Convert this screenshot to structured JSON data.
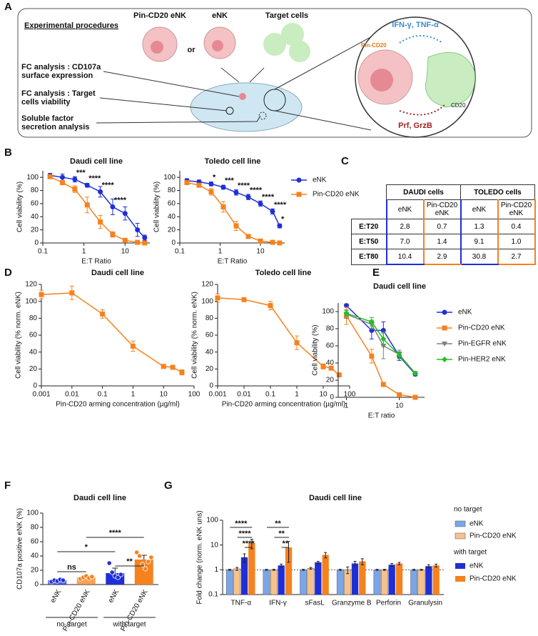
{
  "panel_labels": [
    "A",
    "B",
    "C",
    "D",
    "E",
    "F",
    "G"
  ],
  "diagram": {
    "title": "Experimental procedures",
    "top_labels": [
      "Pin-CD20 eNK",
      "eNK",
      "Target cells"
    ],
    "or": "or",
    "analyses": [
      [
        "FC analysis : CD107a",
        "surface expression"
      ],
      [
        "FC analysis : Target",
        "cells viability"
      ],
      [
        "Soluble factor",
        "secretion analysis"
      ]
    ],
    "zoom_labels": {
      "cytokines": "IFN-γ, TNF-α",
      "pin": "Pin-CD20",
      "cd20": "CD20",
      "granules": "Prf, GrzB"
    }
  },
  "table": {
    "group_headers": [
      "DAUDI cells",
      "TOLEDO cells"
    ],
    "column_headers": [
      "eNK",
      "Pin-CD20 eNK",
      "eNK",
      "Pin-CD20 eNK"
    ],
    "rows": [
      {
        "label": "E:T20",
        "cells": [
          "2.8",
          "0.7",
          "1.3",
          "0.4"
        ]
      },
      {
        "label": "E:T50",
        "cells": [
          "7.0",
          "1.4",
          "9.1",
          "1.0"
        ]
      },
      {
        "label": "E:T80",
        "cells": [
          "10.4",
          "2.9",
          "30.8",
          "2.7"
        ]
      }
    ]
  },
  "chart_data": [
    {
      "type": "line",
      "title": "Daudi cell line",
      "xlabel": "E:T Ratio",
      "ylabel": "Cell viability (%)",
      "x": [
        0.15,
        0.3,
        0.6,
        1.2,
        2.5,
        5,
        10,
        20,
        30
      ],
      "xlog": true,
      "xlim": [
        0.1,
        40
      ],
      "xticks": [
        0.1,
        1,
        10
      ],
      "ylim": [
        0,
        110
      ],
      "yticks": [
        0,
        20,
        40,
        60,
        80,
        100
      ],
      "series": [
        {
          "color": "#1f2fd6",
          "marker": "circle",
          "values": [
            103,
            100,
            97,
            88,
            78,
            55,
            45,
            20,
            8
          ],
          "errors": [
            3,
            5,
            4,
            3,
            8,
            12,
            10,
            10,
            4
          ],
          "significance": [
            null,
            null,
            "***",
            "****",
            "****",
            "****",
            null,
            null,
            null
          ]
        },
        {
          "color": "#f5821f",
          "marker": "square",
          "values": [
            101,
            92,
            82,
            58,
            32,
            13,
            4,
            1,
            0
          ],
          "errors": [
            2,
            3,
            5,
            12,
            10,
            4,
            2,
            1,
            0
          ]
        }
      ]
    },
    {
      "type": "line",
      "title": "Toledo cell line",
      "xlabel": "E:T Ratio",
      "ylabel": "Cell viability (%)",
      "legend": true,
      "x": [
        0.15,
        0.3,
        0.6,
        1.2,
        2.5,
        5,
        10,
        20,
        30
      ],
      "xlog": true,
      "xlim": [
        0.1,
        40
      ],
      "xticks": [
        0.1,
        1,
        10
      ],
      "ylim": [
        0,
        110
      ],
      "yticks": [
        0,
        20,
        40,
        60,
        80,
        100
      ],
      "series": [
        {
          "name": "eNK",
          "color": "#1f2fd6",
          "marker": "circle",
          "values": [
            95,
            93,
            90,
            85,
            77,
            70,
            60,
            48,
            26
          ],
          "errors": [
            3,
            3,
            3,
            3,
            4,
            4,
            4,
            4,
            3
          ],
          "significance": [
            null,
            null,
            "*",
            "***",
            "****",
            "****",
            "****",
            "****",
            "*"
          ]
        },
        {
          "name": "Pin-CD20 eNK",
          "color": "#f5821f",
          "marker": "square",
          "values": [
            92,
            88,
            78,
            55,
            26,
            10,
            3,
            1,
            0
          ],
          "errors": [
            3,
            3,
            5,
            8,
            7,
            3,
            2,
            1,
            0
          ]
        }
      ]
    },
    {
      "type": "line",
      "title": "Daudi cell line",
      "xlabel": "Pin-CD20 arming concentration (µg/ml)",
      "ylabel": "Cell viability (% norm. eNK)",
      "x": [
        0.001,
        0.01,
        0.1,
        1,
        10,
        20,
        40
      ],
      "xlog": true,
      "xlim": [
        0.001,
        100
      ],
      "xticks": [
        0.001,
        0.01,
        0.1,
        1,
        10,
        100
      ],
      "ylim": [
        0,
        120
      ],
      "yticks": [
        0,
        20,
        40,
        60,
        80,
        100,
        120
      ],
      "series": [
        {
          "color": "#f5821f",
          "marker": "square",
          "values": [
            108,
            110,
            85,
            47,
            23,
            22,
            16
          ],
          "errors": [
            5,
            8,
            5,
            6,
            2,
            2,
            3
          ]
        }
      ]
    },
    {
      "type": "line",
      "title": "Toledo cell line",
      "xlabel": "Pin-CD20 arming concentration (µg/ml)",
      "ylabel": "Cell viability (% norm. eNK)",
      "x": [
        0.001,
        0.01,
        0.1,
        1,
        10,
        20,
        40
      ],
      "xlog": true,
      "xlim": [
        0.001,
        100
      ],
      "xticks": [
        0.001,
        0.01,
        0.1,
        1,
        10,
        100
      ],
      "ylim": [
        0,
        120
      ],
      "yticks": [
        0,
        20,
        40,
        60,
        80,
        100,
        120
      ],
      "series": [
        {
          "color": "#f5821f",
          "marker": "square",
          "values": [
            104,
            102,
            95,
            51,
            23,
            21,
            13
          ],
          "errors": [
            5,
            2,
            5,
            8,
            3,
            2,
            2
          ]
        }
      ]
    },
    {
      "type": "line",
      "title": "Daudi cell line",
      "xlabel": "E:T ratio",
      "ylabel": "Cell viability (%)",
      "legend": true,
      "x": [
        1,
        3,
        5,
        10,
        20
      ],
      "xlog": true,
      "xlim": [
        0.7,
        30
      ],
      "xticks": [
        1,
        10
      ],
      "ylim": [
        0,
        110
      ],
      "yticks": [
        0,
        20,
        40,
        60,
        80,
        100
      ],
      "series": [
        {
          "name": "eNK",
          "color": "#1f2fd6",
          "marker": "circle",
          "values": [
            107,
            78,
            78,
            48,
            27
          ],
          "errors": [
            2,
            10,
            10,
            5,
            2
          ]
        },
        {
          "name": "Pin-CD20 eNK",
          "color": "#f5821f",
          "marker": "square",
          "values": [
            95,
            48,
            15,
            3,
            0
          ],
          "errors": [
            10,
            8,
            2,
            1,
            1
          ]
        },
        {
          "name": "Pin-EGFR eNK",
          "color": "#808080",
          "marker": "triangle",
          "values": [
            97,
            85,
            60,
            50,
            28
          ],
          "errors": [
            5,
            5,
            15,
            5,
            2
          ]
        },
        {
          "name": "Pin-HER2 eNK",
          "color": "#22c022",
          "marker": "diamond",
          "values": [
            98,
            88,
            68,
            49,
            28
          ],
          "errors": [
            3,
            5,
            8,
            4,
            2
          ]
        }
      ]
    },
    {
      "type": "bar",
      "title": "Daudi cell line",
      "ylabel": "CD107a positive eNK (%)",
      "categories": [
        "eNK",
        "Pin-CD20 eNK",
        "eNK",
        "Pin-CD20 eNK"
      ],
      "group_labels": [
        "no  target",
        "with target"
      ],
      "values": [
        6,
        10,
        16,
        35
      ],
      "errors": [
        1,
        2,
        7,
        6
      ],
      "colors": [
        "#1f2fd6",
        "#f5821f",
        "#1f2fd6",
        "#f5821f"
      ],
      "points": [
        [
          4,
          6,
          5,
          7,
          6
        ],
        [
          8,
          10,
          12,
          9,
          11
        ],
        [
          30,
          17,
          12,
          10,
          14
        ],
        [
          45,
          40,
          28,
          22,
          32,
          38
        ]
      ],
      "ylim": [
        0,
        100
      ],
      "yticks": [
        0,
        20,
        40,
        60,
        80,
        100
      ],
      "significance": [
        "ns",
        "*",
        "****",
        "**"
      ]
    },
    {
      "type": "groupedbar",
      "title": "Daudi cell line",
      "ylabel": "Fold change (norm. eNK uns)",
      "ylog": true,
      "categories": [
        "TNF-α",
        "IFN-γ",
        "sFasL",
        "Granzyme B",
        "Perforin",
        "Granulysin"
      ],
      "legend_titles": [
        "no target",
        "with target"
      ],
      "series": [
        {
          "name": "eNK",
          "color": "#7aa6e8",
          "values": [
            1,
            1,
            1,
            1,
            1,
            1
          ],
          "errors": [
            0.05,
            0.05,
            0.05,
            0.05,
            0.05,
            0.05
          ]
        },
        {
          "name": "Pin-CD20 eNK",
          "color": "#f8c18c",
          "values": [
            1.1,
            1,
            1.15,
            1,
            1,
            1
          ],
          "errors": [
            0.15,
            0.05,
            0.1,
            0.3,
            0.05,
            0.05
          ]
        },
        {
          "name": "eNK",
          "color": "#1f2fd6",
          "values": [
            3.2,
            1.5,
            2,
            1.8,
            1.6,
            1.4
          ],
          "errors": [
            1.2,
            0.2,
            0.2,
            0.4,
            0.2,
            0.2
          ]
        },
        {
          "name": "Pin-CD20 eNK",
          "color": "#f5821f",
          "values": [
            12,
            8,
            4,
            2.2,
            1.8,
            1.5
          ],
          "errors": [
            5,
            6,
            1,
            0.6,
            0.2,
            0.2
          ]
        }
      ],
      "ylim": [
        0.1,
        100
      ],
      "yticks": [
        0.1,
        1,
        10,
        100
      ],
      "reference_line": 1,
      "significance": [
        "****",
        "****",
        "****",
        "**",
        "**",
        "**"
      ]
    }
  ]
}
